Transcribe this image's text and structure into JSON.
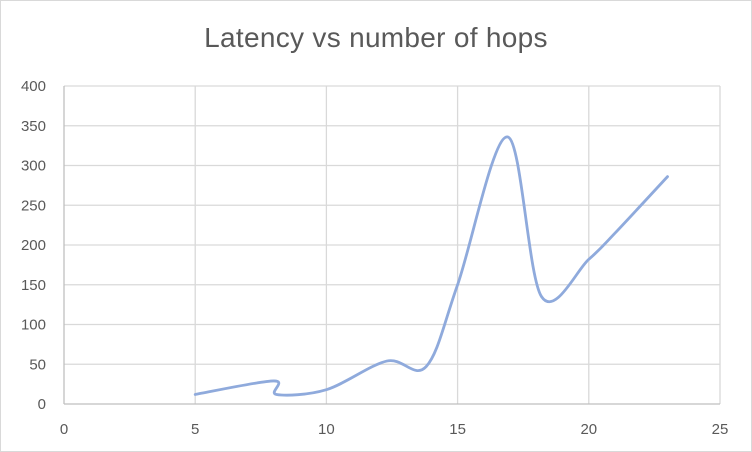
{
  "chart_data": {
    "type": "line",
    "title": "Latency vs number of hops",
    "xlabel": "",
    "ylabel": "",
    "xlim": [
      0,
      25
    ],
    "ylim": [
      0,
      400
    ],
    "x_ticks": [
      0,
      5,
      10,
      15,
      20,
      25
    ],
    "y_ticks": [
      0,
      50,
      100,
      150,
      200,
      250,
      300,
      350,
      400
    ],
    "grid": true,
    "smoothed": true,
    "series": [
      {
        "color": "#8faadc",
        "points": [
          [
            5,
            12
          ],
          [
            8,
            29
          ],
          [
            8.1,
            12
          ],
          [
            10,
            18
          ],
          [
            12.3,
            54
          ],
          [
            13.8,
            47
          ],
          [
            15,
            150
          ],
          [
            16.9,
            336
          ],
          [
            18.2,
            135
          ],
          [
            20,
            182
          ],
          [
            21,
            215
          ],
          [
            23,
            286
          ]
        ]
      }
    ]
  }
}
